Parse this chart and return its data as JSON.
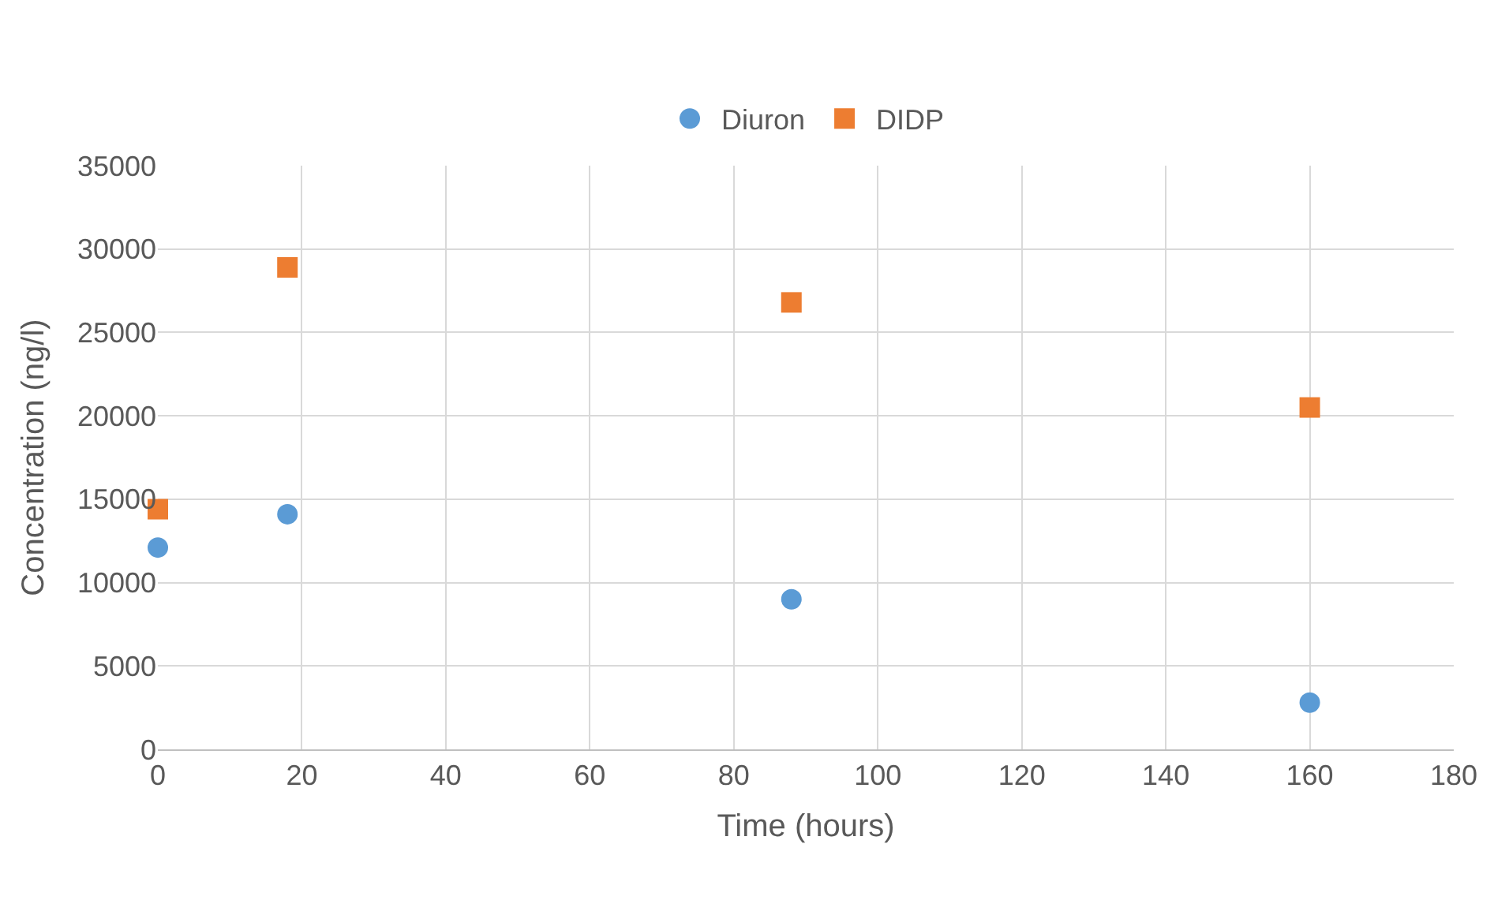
{
  "chart_data": {
    "type": "scatter",
    "xlabel": "Time (hours)",
    "ylabel": "Concentration (ng/l)",
    "series": [
      {
        "name": "Diuron",
        "color": "#5b9bd5",
        "marker": "circle",
        "x": [
          0,
          18,
          88,
          160
        ],
        "values": [
          12100,
          14100,
          9000,
          2800
        ]
      },
      {
        "name": "DIDP",
        "color": "#ed7d31",
        "marker": "square",
        "x": [
          0,
          18,
          88,
          160
        ],
        "values": [
          14400,
          28900,
          26800,
          20500
        ]
      }
    ],
    "xlim": [
      0,
      180
    ],
    "xticks": [
      0,
      20,
      40,
      60,
      80,
      100,
      120,
      140,
      160,
      180
    ],
    "ylim": [
      0,
      35000
    ],
    "yticks": [
      0,
      5000,
      10000,
      15000,
      20000,
      25000,
      30000,
      35000
    ],
    "grid": true,
    "legend": "top"
  }
}
